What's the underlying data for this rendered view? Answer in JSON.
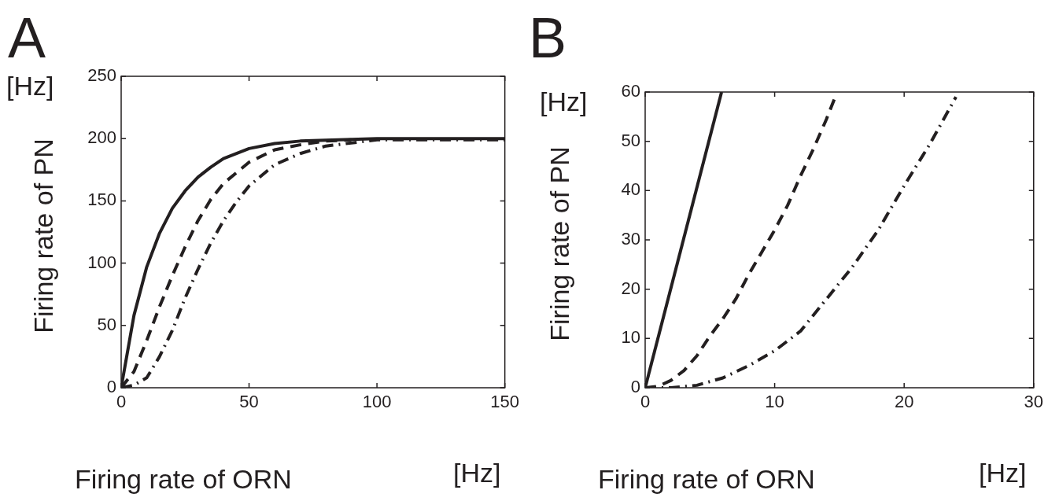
{
  "chart_data": [
    {
      "type": "line",
      "title": "A",
      "xlabel": "Firing rate of ORN",
      "ylabel": "Firing rate of PN",
      "annotations": [
        "[Hz]",
        "[Hz]"
      ],
      "xlim": [
        0,
        150
      ],
      "xticks": [
        0,
        50,
        100,
        150
      ],
      "ylim": [
        0,
        250
      ],
      "yticks": [
        0,
        50,
        100,
        150,
        200,
        250
      ],
      "grid": false,
      "legend": false,
      "marker": "none",
      "series": [
        {
          "color": "#231f20",
          "line_style": "solid",
          "x": [
            0,
            5,
            10,
            15,
            20,
            25,
            30,
            35,
            40,
            50,
            60,
            70,
            100,
            150
          ],
          "values": [
            0,
            58,
            97,
            124,
            144,
            158,
            169,
            177,
            184,
            192,
            196,
            198,
            200,
            200
          ]
        },
        {
          "color": "#231f20",
          "line_style": "dashed",
          "x": [
            0,
            5,
            10,
            15,
            20,
            25,
            30,
            35,
            40,
            50,
            60,
            70,
            80,
            90
          ],
          "values": [
            0,
            13,
            38,
            65,
            90,
            113,
            134,
            151,
            164,
            181,
            191,
            195,
            198,
            199
          ]
        },
        {
          "color": "#231f20",
          "line_style": "dashdot",
          "x": [
            0,
            5,
            10,
            15,
            20,
            25,
            30,
            35,
            40,
            45,
            50,
            60,
            70,
            80,
            100,
            150
          ],
          "values": [
            0,
            2,
            8,
            25,
            46,
            72,
            95,
            116,
            134,
            149,
            162,
            179,
            188,
            194,
            199,
            199
          ]
        }
      ]
    },
    {
      "type": "line",
      "title": "B",
      "xlabel": "Firing rate of ORN",
      "ylabel": "Firing rate of PN",
      "annotations": [
        "[Hz]",
        "[Hz]"
      ],
      "xlim": [
        0,
        30
      ],
      "xticks": [
        0,
        10,
        20,
        30
      ],
      "ylim": [
        0,
        60
      ],
      "yticks": [
        0,
        10,
        20,
        30,
        40,
        50,
        60
      ],
      "grid": false,
      "legend": false,
      "marker": "none",
      "series": [
        {
          "color": "#231f20",
          "line_style": "solid",
          "x": [
            0,
            5.9
          ],
          "values": [
            0,
            60
          ]
        },
        {
          "color": "#231f20",
          "line_style": "dashed",
          "x": [
            0,
            1,
            2,
            3,
            4,
            5,
            6,
            7,
            8,
            9,
            10,
            11,
            12,
            13,
            14,
            14.6
          ],
          "values": [
            0,
            0.3,
            1.5,
            3.5,
            6.5,
            10.5,
            14,
            18,
            23,
            27.5,
            32,
            37,
            43,
            48.5,
            54.5,
            58.5
          ]
        },
        {
          "color": "#231f20",
          "line_style": "dashdot",
          "x": [
            0,
            2,
            4,
            6,
            8,
            10,
            12,
            14,
            16,
            18,
            20,
            22,
            24
          ],
          "values": [
            0,
            0,
            0.5,
            2,
            4.5,
            7.5,
            11.5,
            18,
            24.5,
            32,
            41,
            49.5,
            59
          ]
        }
      ]
    }
  ]
}
